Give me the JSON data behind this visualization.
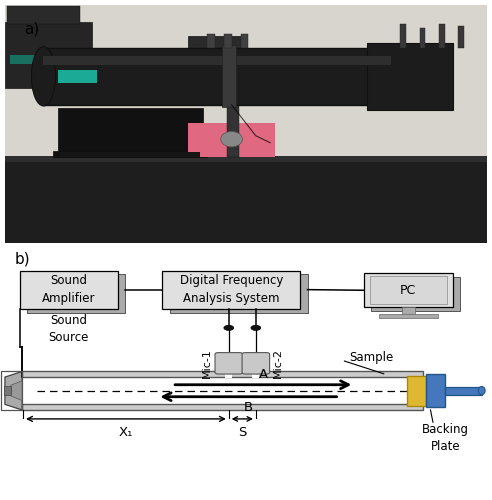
{
  "fig_label_a": "a)",
  "fig_label_b": "b)",
  "sound_amp_label": "Sound\nAmplifier",
  "dfa_label": "Digital Frequency\nAnalysis System",
  "pc_label": "PC",
  "sound_source_label": "Sound\nSource",
  "mic1_label": "Mic-1",
  "mic2_label": "Mic-2",
  "sample_label": "Sample",
  "backing_plate_label": "Backing\nPlate",
  "arrow_A_label": "A",
  "arrow_B_label": "B",
  "x1_label": "X₁",
  "s_label": "S",
  "bg_color": "#ffffff",
  "box_fill": "#e0e0e0",
  "box_shadow": "#aaaaaa",
  "box_edge": "#000000",
  "yellow_fill": "#ddb830",
  "blue_fill": "#4477bb",
  "mic_fill": "#c8c8c8",
  "tube_wall_fill": "#cccccc",
  "speaker_fill": "#aaaaaa",
  "photo_wall": "#d8d5ce",
  "photo_table": "#1e1e1e",
  "photo_tube": "#1a1a1a",
  "photo_teal": "#1aaa96"
}
